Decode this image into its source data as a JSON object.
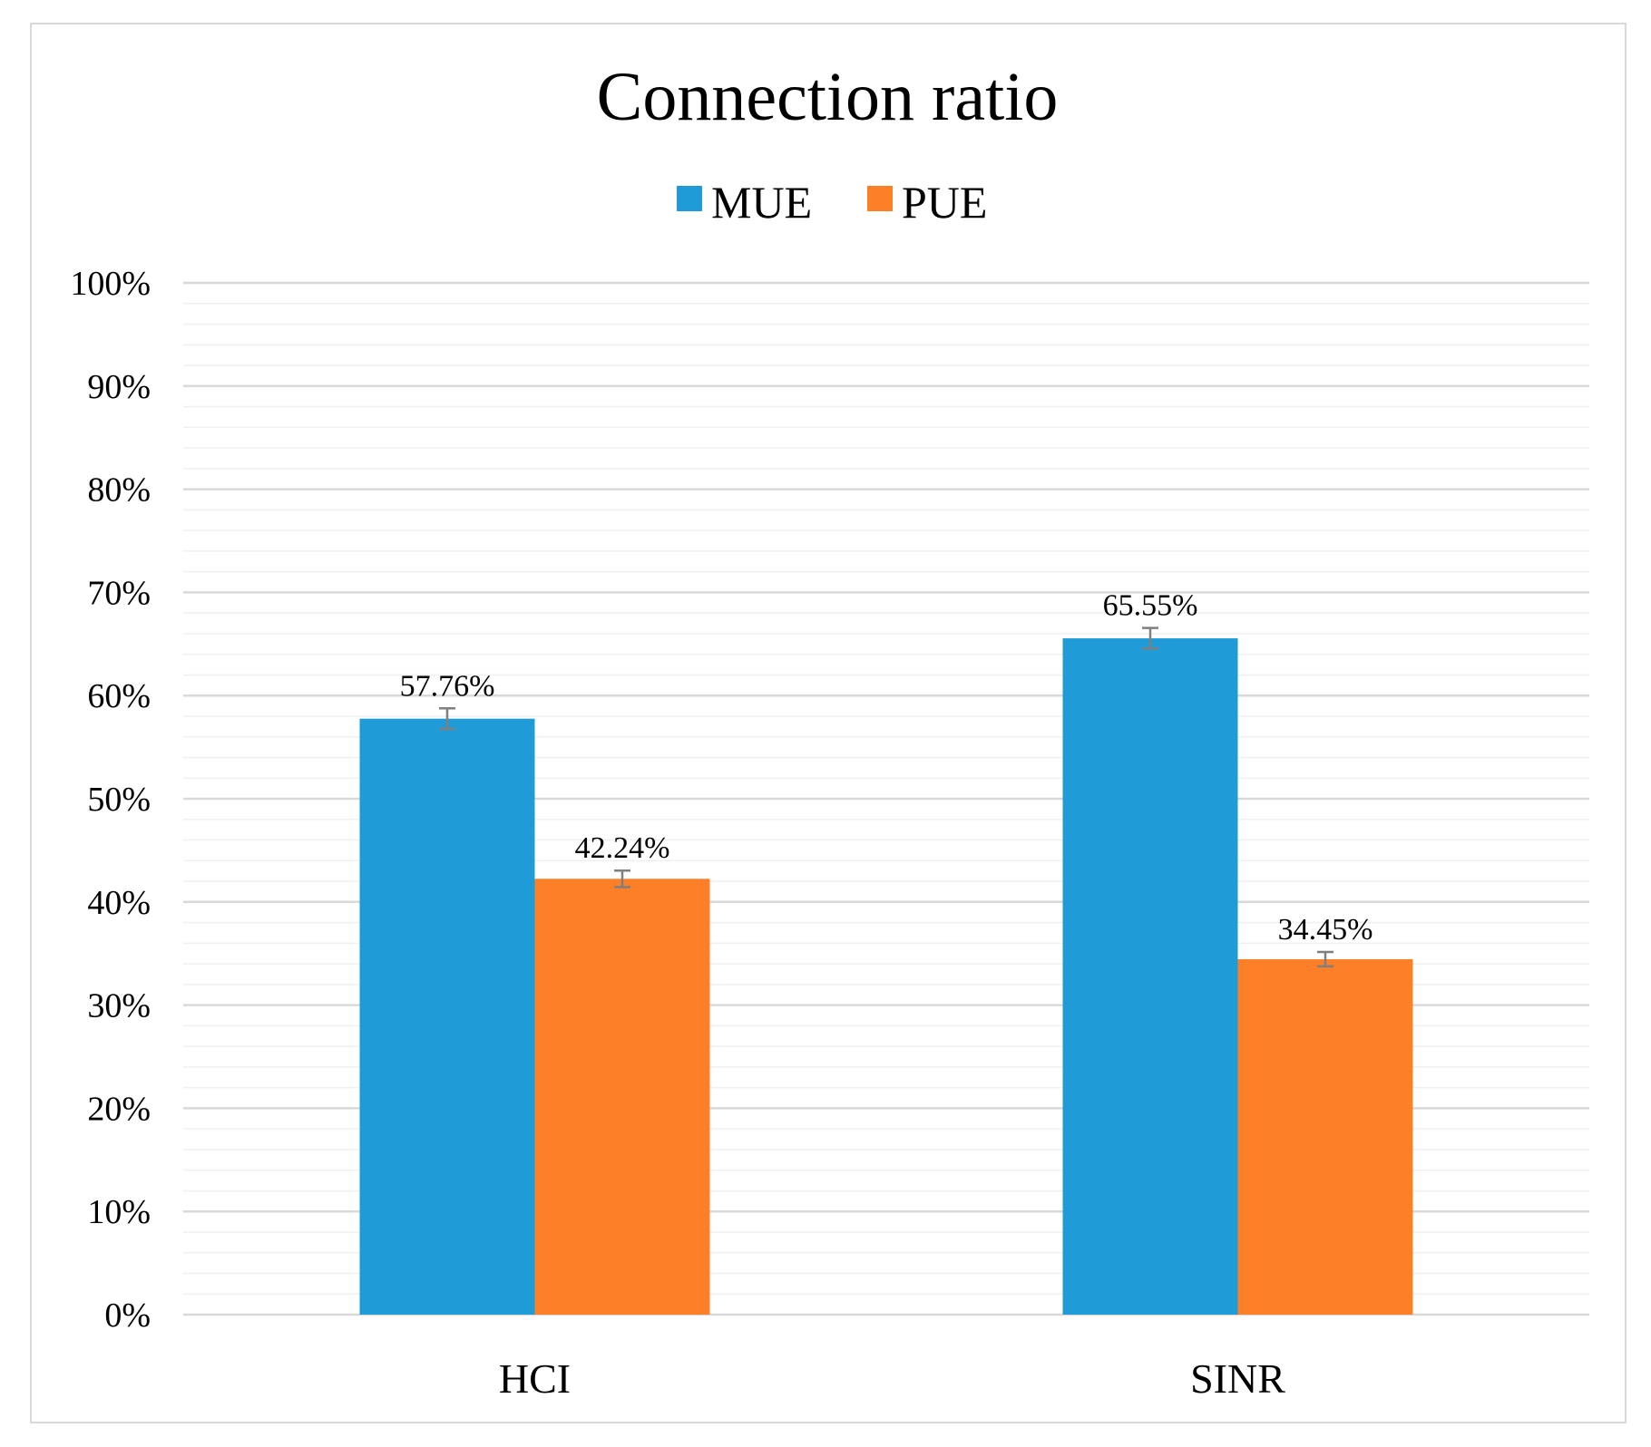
{
  "chart_data": {
    "type": "bar",
    "title": "Connection ratio",
    "categories": [
      "HCI",
      "SINR"
    ],
    "series": [
      {
        "name": "MUE",
        "color": "#1f9cd8",
        "values": [
          57.76,
          65.55
        ],
        "labels": [
          "57.76%",
          "65.55%"
        ],
        "error": [
          1.0,
          1.0
        ]
      },
      {
        "name": "PUE",
        "color": "#fd7f28",
        "values": [
          42.24,
          34.45
        ],
        "labels": [
          "42.24%",
          "34.45%"
        ],
        "error": [
          0.8,
          0.7
        ]
      }
    ],
    "ylim": [
      0,
      100
    ],
    "yticks": [
      0,
      10,
      20,
      30,
      40,
      50,
      60,
      70,
      80,
      90,
      100
    ],
    "ytick_labels": [
      "0%",
      "10%",
      "20%",
      "30%",
      "40%",
      "50%",
      "60%",
      "70%",
      "80%",
      "90%",
      "100%"
    ],
    "minor_step": 2,
    "grid": true,
    "legend": "top-center",
    "xlabel": "",
    "ylabel": ""
  }
}
